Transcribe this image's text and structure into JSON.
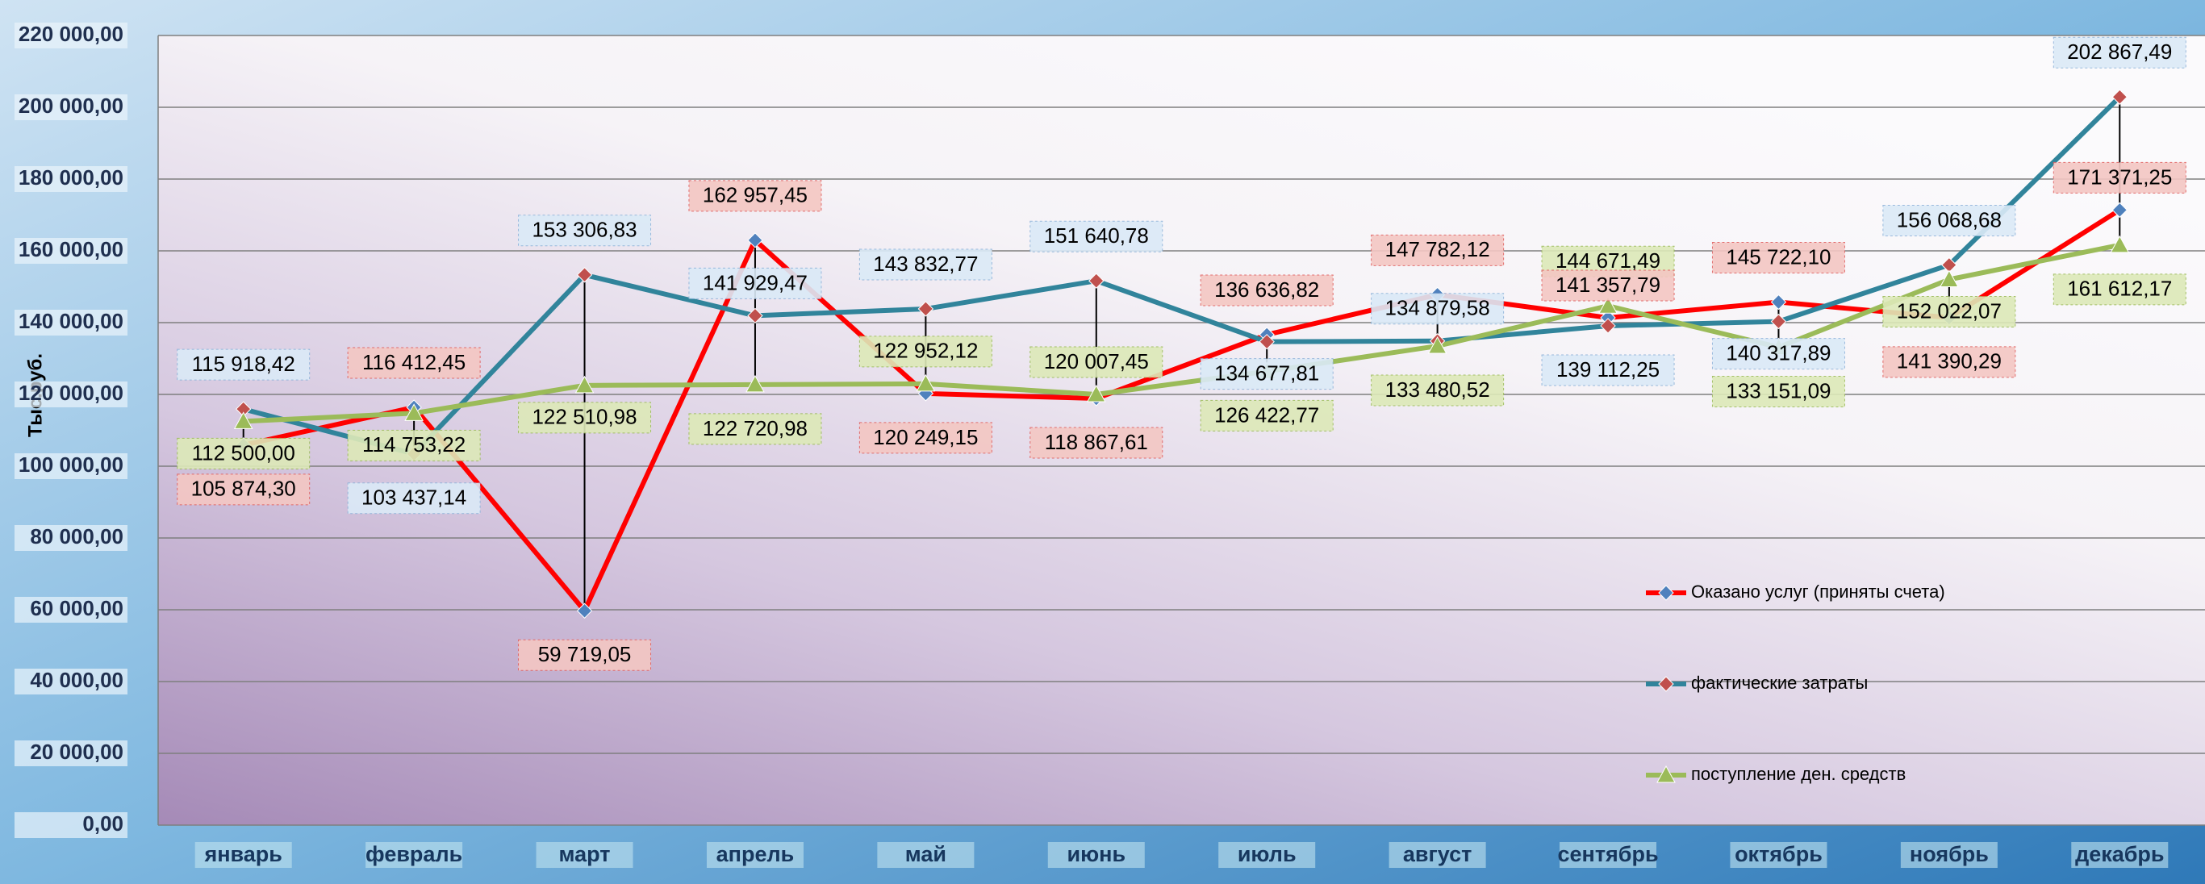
{
  "chart_data": {
    "type": "line",
    "y_axis_label": "Тыс.руб.",
    "categories": [
      "январь",
      "февраль",
      "март",
      "апрель",
      "май",
      "июнь",
      "июль",
      "август",
      "сентябрь",
      "октябрь",
      "ноябрь",
      "декабрь"
    ],
    "series": [
      {
        "name": "Оказано услуг (приняты счета)",
        "color": "#ff0000",
        "marker_color": "#4f81bd",
        "marker": "diamond",
        "values": [
          105874.3,
          116412.45,
          59719.05,
          162957.45,
          120249.15,
          118867.61,
          136636.82,
          147782.12,
          141357.79,
          145722.1,
          141390.29,
          171371.25
        ],
        "value_labels": [
          "105 874,30",
          "116 412,45",
          "59 719,05",
          "162 957,45",
          "120 249,15",
          "118 867,61",
          "136 636,82",
          "147 782,12",
          "141 357,79",
          "145 722,10",
          "141 390,29",
          "171 371,25"
        ]
      },
      {
        "name": "фактические затраты",
        "color": "#31849b",
        "marker_color": "#c0504d",
        "marker": "diamond",
        "values": [
          115918.42,
          103437.14,
          153306.83,
          141929.47,
          143832.77,
          151640.78,
          134677.81,
          134879.58,
          139112.25,
          140317.89,
          156068.68,
          202867.49
        ],
        "value_labels": [
          "115 918,42",
          "103 437,14",
          "153 306,83",
          "141 929,47",
          "143 832,77",
          "151 640,78",
          "134 677,81",
          "134 879,58",
          "139 112,25",
          "140 317,89",
          "156 068,68",
          "202 867,49"
        ]
      },
      {
        "name": "поступление ден. средств",
        "color": "#9bbb59",
        "marker_color": "#9bbb59",
        "marker": "triangle",
        "values": [
          112500.0,
          114753.22,
          122510.98,
          122720.98,
          122952.12,
          120007.45,
          126422.77,
          133480.52,
          144671.49,
          133151.09,
          152022.07,
          161612.17
        ],
        "value_labels": [
          "112 500,00",
          "114 753,22",
          "122 510,98",
          "122 720,98",
          "122 952,12",
          "120 007,45",
          "126 422,77",
          "133 480,52",
          "144 671,49",
          "133 151,09",
          "152 022,07",
          "161 612,17"
        ]
      }
    ],
    "ylim": [
      0,
      220000
    ],
    "yticks": [
      {
        "value": 0,
        "label": "0,00"
      },
      {
        "value": 20000,
        "label": "20 000,00"
      },
      {
        "value": 40000,
        "label": "40 000,00"
      },
      {
        "value": 60000,
        "label": "60 000,00"
      },
      {
        "value": 80000,
        "label": "80 000,00"
      },
      {
        "value": 100000,
        "label": "100 000,00"
      },
      {
        "value": 120000,
        "label": "120 000,00"
      },
      {
        "value": 140000,
        "label": "140 000,00"
      },
      {
        "value": 160000,
        "label": "160 000,00"
      },
      {
        "value": 180000,
        "label": "180 000,00"
      },
      {
        "value": 200000,
        "label": "200 000,00"
      },
      {
        "value": 220000,
        "label": "220 000,00"
      }
    ],
    "grid": true,
    "hi_low_lines": true,
    "legend_position": "right"
  }
}
